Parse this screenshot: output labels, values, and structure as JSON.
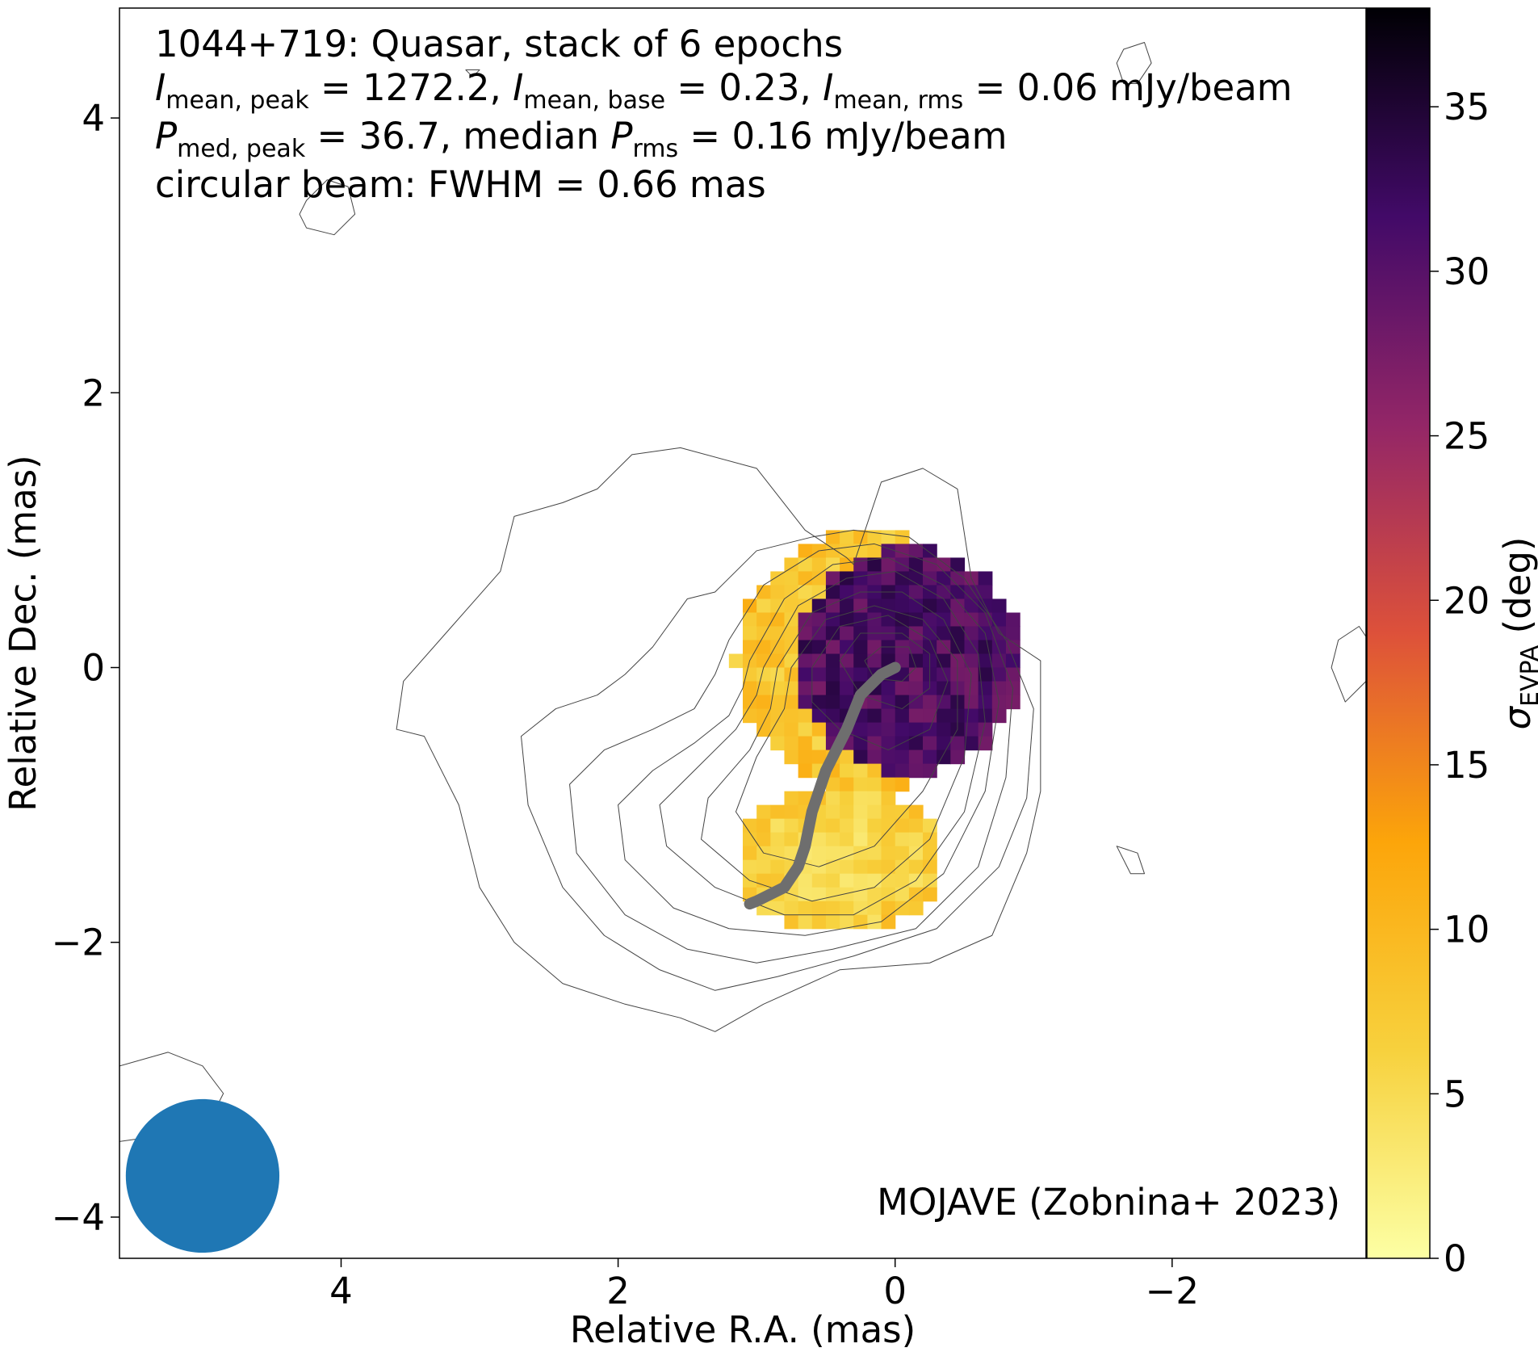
{
  "chart_data": {
    "type": "heatmap",
    "title_lines": {
      "line1": "1044+719: Quasar, stack of 6 epochs",
      "line2": {
        "a_sym": "I",
        "a_sub": "mean, peak",
        "a_val": " = 1272.2, ",
        "b_sym": "I",
        "b_sub": "mean, base",
        "b_val": " = 0.23, ",
        "c_sym": "I",
        "c_sub": "mean, rms",
        "c_val": " = 0.06 mJy/beam"
      },
      "line3": {
        "a_sym": "P",
        "a_sub": "med, peak",
        "a_val": " = 36.7, median ",
        "b_sym": "P",
        "b_sub": "rms",
        "b_val": " = 0.16 mJy/beam"
      },
      "line4": "circular beam: FWHM = 0.66 mas"
    },
    "credit": "MOJAVE (Zobnina+ 2023)",
    "xlabel": "Relative R.A. (mas)",
    "ylabel": "Relative Dec. (mas)",
    "xlim": [
      5.6,
      -3.4
    ],
    "ylim": [
      -4.3,
      4.8
    ],
    "x_ticks": [
      4,
      2,
      0,
      -2
    ],
    "x_tick_labels": [
      "4",
      "2",
      "0",
      "−2"
    ],
    "y_ticks": [
      4,
      2,
      0,
      -2,
      -4
    ],
    "y_tick_labels": [
      "4",
      "2",
      "0",
      "−2",
      "−4"
    ],
    "colorbar": {
      "label_sym": "σ",
      "label_sub": "EVPA",
      "label_unit": " (deg)",
      "range": [
        0,
        38
      ],
      "ticks": [
        0,
        5,
        10,
        15,
        20,
        25,
        30,
        35
      ],
      "tick_labels": [
        "0",
        "5",
        "10",
        "15",
        "20",
        "25",
        "30",
        "35"
      ],
      "colormap": "inferno_r",
      "colormap_stops": [
        "#fcffa4",
        "#f7d13d",
        "#fca50a",
        "#dd513a",
        "#932667",
        "#420a68",
        "#000004"
      ]
    },
    "beam": {
      "fwhm_mas": 0.66,
      "center": [
        5.0,
        -3.7
      ],
      "color": "#1f77b4"
    },
    "ridgeline": {
      "color": "#6e6e6e",
      "x": [
        0.0,
        -0.1,
        -0.25,
        -0.35,
        -0.5,
        -0.6,
        -0.65,
        -0.7,
        -0.8,
        -1.0,
        -1.05
      ],
      "y": [
        0.0,
        -0.05,
        -0.2,
        -0.45,
        -0.75,
        -1.05,
        -1.3,
        -1.45,
        -1.6,
        -1.7,
        -1.72
      ],
      "x_note": "x given as negative offsets of R.A.; drawn as R.A. = -x"
    },
    "epvpa_regions": [
      {
        "name": "core",
        "center": [
          0.0,
          0.05
        ],
        "radius": 0.82,
        "value_range": [
          24,
          34
        ]
      },
      {
        "name": "inner-jet halo",
        "center": [
          0.3,
          0.05
        ],
        "radius": 0.95,
        "value_range": [
          2,
          12
        ]
      },
      {
        "name": "outer jet",
        "center": [
          0.5,
          -1.4
        ],
        "rx": 0.75,
        "ry": 0.55,
        "value_range": [
          1,
          10
        ]
      }
    ],
    "contours": [
      {
        "level": 1,
        "x": [
          2.75,
          2.4,
          2.15,
          1.9,
          1.55,
          1.0,
          0.65,
          0.35,
          0.3,
          0.1,
          -0.2,
          -0.45,
          -0.55,
          -0.75,
          -1.05,
          -1.05,
          -0.95,
          -0.7,
          -0.25,
          0.4,
          0.95,
          1.3,
          1.55,
          1.95,
          2.4,
          2.75,
          3.0,
          3.15,
          3.4,
          3.6,
          3.55,
          3.2,
          2.85,
          2.75
        ],
        "y": [
          1.1,
          1.2,
          1.3,
          1.55,
          1.6,
          1.45,
          1.0,
          0.8,
          0.75,
          1.35,
          1.45,
          1.3,
          0.65,
          0.25,
          0.05,
          -0.9,
          -1.35,
          -1.95,
          -2.15,
          -2.2,
          -2.45,
          -2.65,
          -2.55,
          -2.45,
          -2.3,
          -2.0,
          -1.6,
          -1.0,
          -0.5,
          -0.45,
          -0.1,
          0.3,
          0.7,
          1.1
        ]
      },
      {
        "level": 2,
        "x": [
          1.5,
          1.3,
          1.0,
          0.6,
          0.3,
          -0.1,
          -0.5,
          -0.8,
          -1.0,
          -0.95,
          -0.75,
          -0.3,
          0.3,
          0.85,
          1.3,
          1.7,
          2.1,
          2.4,
          2.65,
          2.7,
          2.45,
          2.15,
          1.95,
          1.75,
          1.5
        ],
        "y": [
          0.5,
          0.55,
          0.85,
          0.95,
          1.0,
          0.95,
          0.65,
          0.2,
          -0.3,
          -0.95,
          -1.45,
          -1.9,
          -2.1,
          -2.25,
          -2.35,
          -2.2,
          -1.95,
          -1.6,
          -1.0,
          -0.5,
          -0.3,
          -0.2,
          -0.05,
          0.15,
          0.5
        ]
      },
      {
        "level": 3,
        "x": [
          1.2,
          0.95,
          0.55,
          0.15,
          -0.3,
          -0.65,
          -0.85,
          -0.8,
          -0.6,
          -0.15,
          0.45,
          1.0,
          1.5,
          1.95,
          2.3,
          2.35,
          2.1,
          1.75,
          1.45,
          1.3,
          1.2
        ],
        "y": [
          0.2,
          0.6,
          0.85,
          0.9,
          0.75,
          0.4,
          -0.15,
          -0.8,
          -1.45,
          -1.9,
          -2.05,
          -2.15,
          -2.05,
          -1.8,
          -1.35,
          -0.85,
          -0.6,
          -0.45,
          -0.3,
          -0.05,
          0.2
        ]
      },
      {
        "level": 4,
        "x": [
          1.05,
          0.8,
          0.45,
          0.05,
          -0.35,
          -0.65,
          -0.75,
          -0.65,
          -0.35,
          0.1,
          0.65,
          1.2,
          1.6,
          1.95,
          2.0,
          1.75,
          1.45,
          1.2,
          1.1,
          1.05
        ],
        "y": [
          0.05,
          0.5,
          0.75,
          0.8,
          0.6,
          0.25,
          -0.25,
          -0.9,
          -1.5,
          -1.85,
          -1.95,
          -1.9,
          -1.75,
          -1.4,
          -1.0,
          -0.75,
          -0.55,
          -0.35,
          -0.15,
          0.05
        ]
      },
      {
        "level": 5,
        "x": [
          0.95,
          0.7,
          0.35,
          0.0,
          -0.35,
          -0.6,
          -0.65,
          -0.5,
          -0.15,
          0.3,
          0.8,
          1.3,
          1.65,
          1.7,
          1.45,
          1.15,
          1.0,
          0.95
        ],
        "y": [
          0.0,
          0.45,
          0.65,
          0.7,
          0.5,
          0.1,
          -0.4,
          -1.05,
          -1.55,
          -1.8,
          -1.8,
          -1.6,
          -1.3,
          -1.0,
          -0.75,
          -0.45,
          -0.2,
          0.0
        ]
      },
      {
        "level": 6,
        "x": [
          0.85,
          0.6,
          0.25,
          -0.05,
          -0.35,
          -0.55,
          -0.5,
          -0.25,
          0.15,
          0.6,
          1.05,
          1.4,
          1.35,
          1.05,
          0.9,
          0.85
        ],
        "y": [
          0.0,
          0.4,
          0.55,
          0.55,
          0.35,
          -0.05,
          -0.65,
          -1.25,
          -1.6,
          -1.7,
          -1.55,
          -1.25,
          -0.95,
          -0.6,
          -0.3,
          0.0
        ]
      },
      {
        "level": 7,
        "x": [
          0.75,
          0.5,
          0.15,
          -0.2,
          -0.45,
          -0.45,
          -0.2,
          0.15,
          0.55,
          0.95,
          1.15,
          1.0,
          0.8,
          0.75
        ],
        "y": [
          0.0,
          0.35,
          0.45,
          0.35,
          0.05,
          -0.45,
          -0.9,
          -1.3,
          -1.45,
          -1.35,
          -1.05,
          -0.65,
          -0.3,
          0.0
        ]
      },
      {
        "level": 8,
        "x": [
          0.6,
          0.4,
          0.05,
          -0.25,
          -0.38,
          -0.25,
          0.05,
          0.4,
          0.6,
          0.6
        ],
        "y": [
          0.0,
          0.3,
          0.38,
          0.2,
          -0.1,
          -0.45,
          -0.6,
          -0.45,
          -0.25,
          0.0
        ]
      },
      {
        "level": 9,
        "x": [
          0.4,
          0.25,
          -0.05,
          -0.25,
          -0.25,
          -0.05,
          0.25,
          0.4
        ],
        "y": [
          0.05,
          0.25,
          0.25,
          0.1,
          -0.15,
          -0.3,
          -0.2,
          0.05
        ]
      },
      {
        "level": 10,
        "x": [
          0.22,
          0.1,
          -0.1,
          -0.15,
          -0.05,
          0.15,
          0.22
        ],
        "y": [
          0.05,
          0.15,
          0.15,
          0.0,
          -0.1,
          -0.08,
          0.05
        ]
      },
      {
        "level": 1,
        "x": [
          5.6,
          5.25,
          5.0,
          4.85,
          4.95,
          5.25,
          5.6
        ],
        "y": [
          -2.9,
          -2.8,
          -2.9,
          -3.1,
          -3.3,
          -3.4,
          -3.45
        ]
      },
      {
        "level": 1,
        "x": [
          -3.25,
          -3.4,
          -3.45,
          -3.35,
          -3.2,
          -3.15,
          -3.25
        ],
        "y": [
          -0.25,
          -0.1,
          0.15,
          0.3,
          0.2,
          0.0,
          -0.25
        ]
      },
      {
        "level": 1,
        "x": [
          -1.6,
          -1.75,
          -1.8,
          -1.7,
          -1.6
        ],
        "y": [
          -1.3,
          -1.35,
          -1.5,
          -1.5,
          -1.3
        ]
      },
      {
        "level": 1,
        "x": [
          4.25,
          4.1,
          3.95,
          3.9,
          4.05,
          4.25,
          4.3,
          4.25
        ],
        "y": [
          3.4,
          3.55,
          3.5,
          3.3,
          3.15,
          3.2,
          3.3,
          3.4
        ]
      },
      {
        "level": 1,
        "x": [
          -1.65,
          -1.8,
          -1.85,
          -1.75,
          -1.65,
          -1.6,
          -1.65
        ],
        "y": [
          4.5,
          4.55,
          4.4,
          4.25,
          4.25,
          4.4,
          4.5
        ]
      },
      {
        "level": 1,
        "x": [
          3.1,
          3.0,
          3.05,
          3.1
        ],
        "y": [
          4.35,
          4.35,
          4.3,
          4.35
        ]
      }
    ]
  }
}
